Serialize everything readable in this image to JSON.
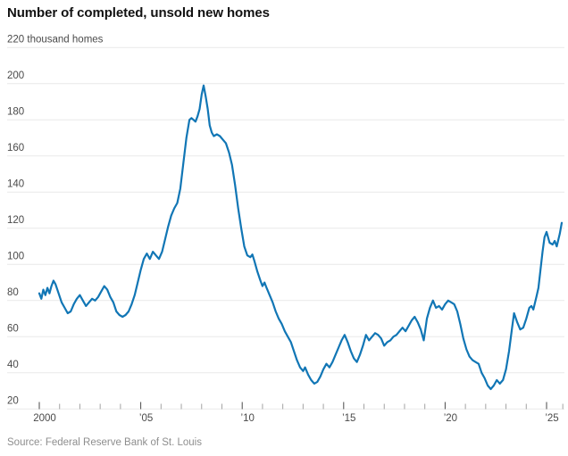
{
  "chart_data": {
    "type": "line",
    "title": "Number of completed, unsold new homes",
    "source": "Source: Federal Reserve Bank of St. Louis",
    "unit_label": "thousand homes",
    "xlabel": "",
    "ylabel": "",
    "ylim": [
      20,
      220
    ],
    "xlim": [
      2000,
      2025.9
    ],
    "grid": true,
    "legend": false,
    "colors": {
      "line": "#1176b5",
      "grid": "#e9e9e9",
      "axis_label": "#4a4a4a",
      "tick_minor": "#a3a3a3",
      "tick_major": "#4a4a4a",
      "title": "#121212",
      "source": "#8e8e8e"
    },
    "y_ticks": [
      20,
      40,
      60,
      80,
      100,
      120,
      140,
      160,
      180,
      200,
      220
    ],
    "x_ticks": [
      {
        "year": 2000,
        "label": "2000"
      },
      {
        "year": 2001,
        "label": ""
      },
      {
        "year": 2002,
        "label": ""
      },
      {
        "year": 2003,
        "label": ""
      },
      {
        "year": 2004,
        "label": ""
      },
      {
        "year": 2005,
        "label": "’05"
      },
      {
        "year": 2006,
        "label": ""
      },
      {
        "year": 2007,
        "label": ""
      },
      {
        "year": 2008,
        "label": ""
      },
      {
        "year": 2009,
        "label": ""
      },
      {
        "year": 2010,
        "label": "’10"
      },
      {
        "year": 2011,
        "label": ""
      },
      {
        "year": 2012,
        "label": ""
      },
      {
        "year": 2013,
        "label": ""
      },
      {
        "year": 2014,
        "label": ""
      },
      {
        "year": 2015,
        "label": "’15"
      },
      {
        "year": 2016,
        "label": ""
      },
      {
        "year": 2017,
        "label": ""
      },
      {
        "year": 2018,
        "label": ""
      },
      {
        "year": 2019,
        "label": ""
      },
      {
        "year": 2020,
        "label": "’20"
      },
      {
        "year": 2021,
        "label": ""
      },
      {
        "year": 2022,
        "label": ""
      },
      {
        "year": 2023,
        "label": ""
      },
      {
        "year": 2024,
        "label": ""
      },
      {
        "year": 2025,
        "label": "’25"
      },
      {
        "year": 2025.8,
        "label": ""
      }
    ],
    "series": [
      {
        "name": "Completed, unsold new homes (thousands)",
        "points": [
          [
            2000.0,
            84
          ],
          [
            2000.1,
            81
          ],
          [
            2000.2,
            86
          ],
          [
            2000.3,
            83
          ],
          [
            2000.4,
            87
          ],
          [
            2000.5,
            84
          ],
          [
            2000.6,
            88
          ],
          [
            2000.7,
            91
          ],
          [
            2000.8,
            89
          ],
          [
            2000.95,
            84
          ],
          [
            2001.1,
            79
          ],
          [
            2001.25,
            76
          ],
          [
            2001.4,
            73
          ],
          [
            2001.55,
            74
          ],
          [
            2001.7,
            78
          ],
          [
            2001.85,
            81
          ],
          [
            2002.0,
            83
          ],
          [
            2002.15,
            80
          ],
          [
            2002.3,
            77
          ],
          [
            2002.45,
            79
          ],
          [
            2002.6,
            81
          ],
          [
            2002.75,
            80
          ],
          [
            2002.9,
            82
          ],
          [
            2003.05,
            85
          ],
          [
            2003.2,
            88
          ],
          [
            2003.35,
            86
          ],
          [
            2003.5,
            82
          ],
          [
            2003.65,
            79
          ],
          [
            2003.8,
            74
          ],
          [
            2003.95,
            72
          ],
          [
            2004.1,
            71
          ],
          [
            2004.25,
            72
          ],
          [
            2004.4,
            74
          ],
          [
            2004.55,
            78
          ],
          [
            2004.7,
            83
          ],
          [
            2004.85,
            90
          ],
          [
            2005.0,
            97
          ],
          [
            2005.15,
            103
          ],
          [
            2005.3,
            106
          ],
          [
            2005.45,
            103
          ],
          [
            2005.6,
            107
          ],
          [
            2005.75,
            105
          ],
          [
            2005.9,
            103
          ],
          [
            2006.05,
            107
          ],
          [
            2006.2,
            114
          ],
          [
            2006.35,
            121
          ],
          [
            2006.5,
            127
          ],
          [
            2006.65,
            131
          ],
          [
            2006.8,
            134
          ],
          [
            2006.95,
            142
          ],
          [
            2007.1,
            156
          ],
          [
            2007.25,
            170
          ],
          [
            2007.4,
            180
          ],
          [
            2007.5,
            181
          ],
          [
            2007.6,
            180
          ],
          [
            2007.7,
            179
          ],
          [
            2007.8,
            182
          ],
          [
            2007.9,
            186
          ],
          [
            2008.0,
            194
          ],
          [
            2008.1,
            199
          ],
          [
            2008.2,
            193
          ],
          [
            2008.3,
            186
          ],
          [
            2008.4,
            177
          ],
          [
            2008.5,
            173
          ],
          [
            2008.6,
            171
          ],
          [
            2008.75,
            172
          ],
          [
            2008.9,
            171
          ],
          [
            2009.05,
            169
          ],
          [
            2009.2,
            167
          ],
          [
            2009.35,
            162
          ],
          [
            2009.5,
            155
          ],
          [
            2009.65,
            144
          ],
          [
            2009.8,
            131
          ],
          [
            2009.95,
            120
          ],
          [
            2010.1,
            110
          ],
          [
            2010.25,
            105
          ],
          [
            2010.4,
            104
          ],
          [
            2010.5,
            105.5
          ],
          [
            2010.6,
            102
          ],
          [
            2010.75,
            96
          ],
          [
            2010.9,
            91
          ],
          [
            2011.0,
            88
          ],
          [
            2011.1,
            90
          ],
          [
            2011.2,
            87
          ],
          [
            2011.35,
            83
          ],
          [
            2011.5,
            79
          ],
          [
            2011.65,
            74
          ],
          [
            2011.8,
            70
          ],
          [
            2011.95,
            67
          ],
          [
            2012.1,
            63
          ],
          [
            2012.25,
            60
          ],
          [
            2012.4,
            57
          ],
          [
            2012.55,
            52
          ],
          [
            2012.7,
            47
          ],
          [
            2012.85,
            43
          ],
          [
            2013.0,
            41
          ],
          [
            2013.1,
            43
          ],
          [
            2013.25,
            39
          ],
          [
            2013.4,
            36
          ],
          [
            2013.55,
            34
          ],
          [
            2013.7,
            35
          ],
          [
            2013.85,
            38
          ],
          [
            2014.0,
            42
          ],
          [
            2014.15,
            45
          ],
          [
            2014.3,
            43
          ],
          [
            2014.45,
            46
          ],
          [
            2014.6,
            50
          ],
          [
            2014.75,
            54
          ],
          [
            2014.9,
            58
          ],
          [
            2015.05,
            61
          ],
          [
            2015.2,
            57
          ],
          [
            2015.35,
            52
          ],
          [
            2015.5,
            48
          ],
          [
            2015.65,
            46
          ],
          [
            2015.8,
            50
          ],
          [
            2015.95,
            55
          ],
          [
            2016.1,
            61
          ],
          [
            2016.25,
            58
          ],
          [
            2016.4,
            60
          ],
          [
            2016.55,
            62
          ],
          [
            2016.7,
            61
          ],
          [
            2016.85,
            59
          ],
          [
            2017.0,
            55
          ],
          [
            2017.15,
            57
          ],
          [
            2017.3,
            58
          ],
          [
            2017.45,
            60
          ],
          [
            2017.6,
            61
          ],
          [
            2017.75,
            63
          ],
          [
            2017.9,
            65
          ],
          [
            2018.05,
            63
          ],
          [
            2018.2,
            66
          ],
          [
            2018.35,
            69
          ],
          [
            2018.5,
            71
          ],
          [
            2018.65,
            68
          ],
          [
            2018.8,
            64
          ],
          [
            2018.95,
            58
          ],
          [
            2019.1,
            70
          ],
          [
            2019.25,
            76
          ],
          [
            2019.4,
            80
          ],
          [
            2019.55,
            76
          ],
          [
            2019.7,
            77
          ],
          [
            2019.85,
            75
          ],
          [
            2020.0,
            78
          ],
          [
            2020.15,
            80
          ],
          [
            2020.3,
            79
          ],
          [
            2020.45,
            78
          ],
          [
            2020.6,
            74
          ],
          [
            2020.75,
            67
          ],
          [
            2020.9,
            59
          ],
          [
            2021.05,
            53
          ],
          [
            2021.2,
            49
          ],
          [
            2021.35,
            47
          ],
          [
            2021.5,
            46
          ],
          [
            2021.65,
            45
          ],
          [
            2021.8,
            40
          ],
          [
            2021.95,
            37
          ],
          [
            2022.1,
            33
          ],
          [
            2022.25,
            31
          ],
          [
            2022.4,
            33
          ],
          [
            2022.55,
            36
          ],
          [
            2022.7,
            34
          ],
          [
            2022.85,
            36
          ],
          [
            2023.0,
            42
          ],
          [
            2023.15,
            52
          ],
          [
            2023.3,
            65
          ],
          [
            2023.4,
            73
          ],
          [
            2023.55,
            68
          ],
          [
            2023.7,
            64
          ],
          [
            2023.85,
            65
          ],
          [
            2024.0,
            70
          ],
          [
            2024.15,
            76
          ],
          [
            2024.25,
            77
          ],
          [
            2024.35,
            75
          ],
          [
            2024.5,
            82
          ],
          [
            2024.6,
            87
          ],
          [
            2024.7,
            97
          ],
          [
            2024.8,
            107
          ],
          [
            2024.9,
            115
          ],
          [
            2025.0,
            118
          ],
          [
            2025.15,
            112
          ],
          [
            2025.3,
            111
          ],
          [
            2025.4,
            113
          ],
          [
            2025.5,
            110
          ],
          [
            2025.65,
            117
          ],
          [
            2025.75,
            123
          ]
        ]
      }
    ]
  }
}
